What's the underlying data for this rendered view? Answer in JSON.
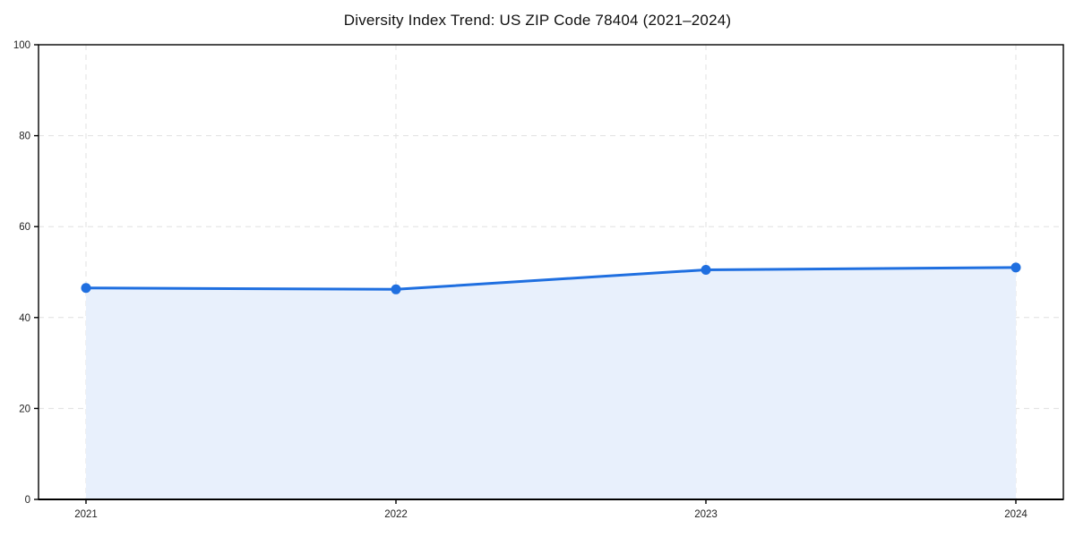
{
  "page": {
    "background": "#ffffff"
  },
  "chart_data": {
    "type": "area",
    "title": "Diversity Index Trend: US ZIP Code 78404 (2021–2024)",
    "categories": [
      "2021",
      "2022",
      "2023",
      "2024"
    ],
    "series": [
      {
        "name": "Diversity Index",
        "values": [
          46.5,
          46.2,
          50.5,
          51.0
        ]
      }
    ],
    "xlabel": "",
    "ylabel": "",
    "ylim": [
      0,
      100
    ],
    "yticks": [
      0,
      20,
      40,
      60,
      80,
      100
    ],
    "grid": true,
    "grid_style": "dashed",
    "legend_position": "none",
    "colors": {
      "line": "#1f6fe0",
      "marker": "#1f6fe0",
      "fill": "#e8f0fc",
      "grid": "#e0e0e0",
      "axis": "#000000",
      "tick_label": "#222222",
      "title": "#111111"
    }
  }
}
